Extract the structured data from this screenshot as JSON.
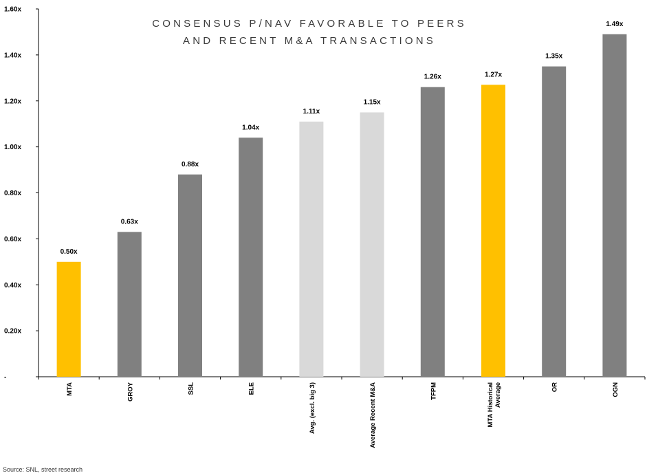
{
  "chart_data": {
    "type": "bar",
    "title_lines": [
      "CONSENSUS P/NAV FAVORABLE TO PEERS",
      "AND RECENT M&A TRANSACTIONS"
    ],
    "categories": [
      [
        "MTA"
      ],
      [
        "GROY"
      ],
      [
        "SSL"
      ],
      [
        "ELE"
      ],
      [
        "Avg. (excl. big 3)"
      ],
      [
        "Average Recent M&A"
      ],
      [
        "TFPM"
      ],
      [
        "MTA Historical",
        "Average"
      ],
      [
        "OR"
      ],
      [
        "OGN"
      ]
    ],
    "values": [
      0.5,
      0.63,
      0.88,
      1.04,
      1.11,
      1.15,
      1.26,
      1.27,
      1.35,
      1.49
    ],
    "data_labels": [
      "0.50x",
      "0.63x",
      "0.88x",
      "1.04x",
      "1.11x",
      "1.15x",
      "1.26x",
      "1.27x",
      "1.35x",
      "1.49x"
    ],
    "bar_colors": [
      "#FFC000",
      "#808080",
      "#808080",
      "#808080",
      "#D9D9D9",
      "#D9D9D9",
      "#808080",
      "#FFC000",
      "#808080",
      "#808080"
    ],
    "ylim": [
      0,
      1.6
    ],
    "y_ticks": [
      0,
      0.2,
      0.4,
      0.6,
      0.8,
      1.0,
      1.2,
      1.4,
      1.6
    ],
    "y_tick_labels": [
      "-",
      "0.20x",
      "0.40x",
      "0.60x",
      "0.80x",
      "1.00x",
      "1.20x",
      "1.40x",
      "1.60x"
    ],
    "grid": false,
    "legend": "none",
    "source_note": "Source: SNL, street research"
  }
}
